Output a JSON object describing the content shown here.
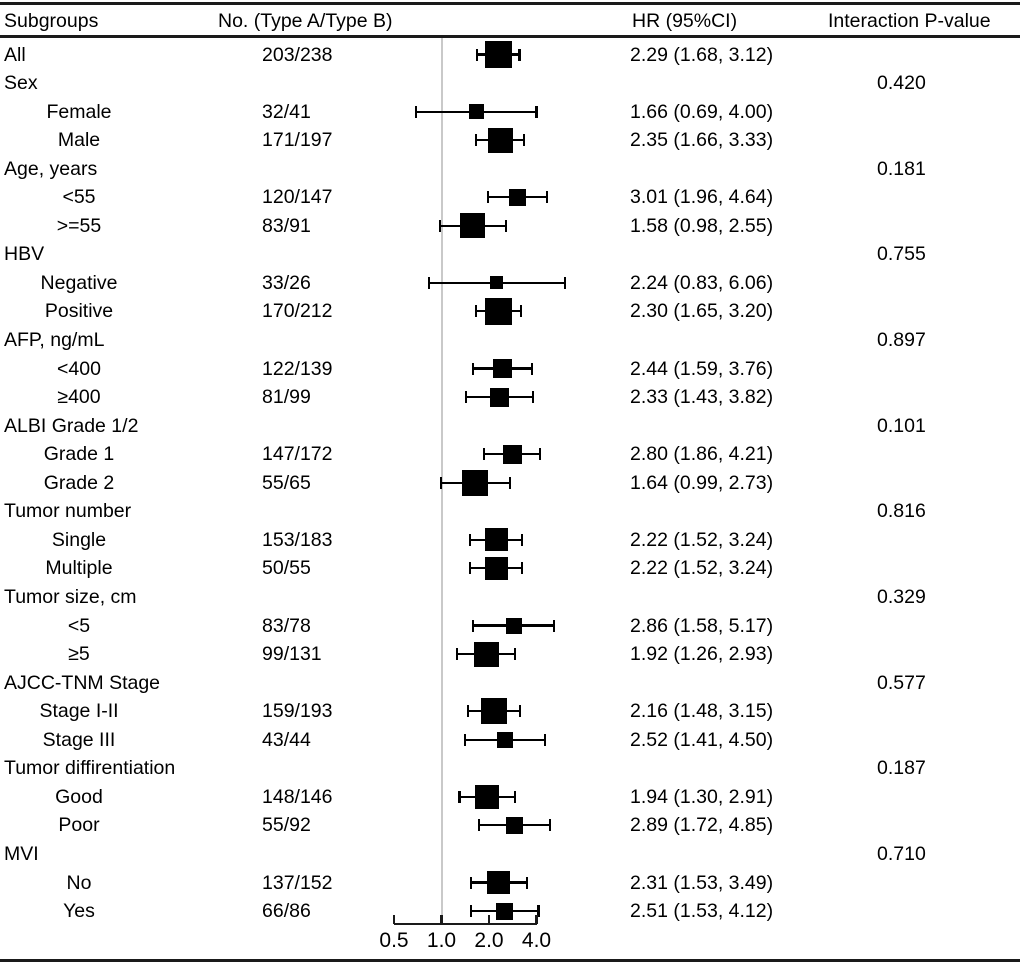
{
  "chart_data": {
    "type": "forest",
    "title": "",
    "columns": [
      "Subgroups",
      "No. (Type A/Type B)",
      "HR (95%CI)",
      "Interaction P-value"
    ],
    "axis": {
      "scale": "log2",
      "reference_value": 1.0,
      "ticks": [
        {
          "value": 0.5,
          "label": "0.5"
        },
        {
          "value": 1.0,
          "label": "1.0"
        },
        {
          "value": 2.0,
          "label": "2.0"
        },
        {
          "value": 4.0,
          "label": "4.0"
        }
      ]
    },
    "rows": [
      {
        "type": "overall",
        "label": "All",
        "n": "203/238",
        "hr": 2.29,
        "lo": 1.68,
        "hi": 3.12,
        "hr_text": "2.29 (1.68, 3.12)",
        "box": 27
      },
      {
        "type": "group",
        "label": "Sex",
        "p": "0.420"
      },
      {
        "type": "sub",
        "label": "Female",
        "n": "32/41",
        "hr": 1.66,
        "lo": 0.69,
        "hi": 4.0,
        "hr_text": "1.66 (0.69, 4.00)",
        "box": 15
      },
      {
        "type": "sub",
        "label": "Male",
        "n": "171/197",
        "hr": 2.35,
        "lo": 1.66,
        "hi": 3.33,
        "hr_text": "2.35 (1.66, 3.33)",
        "box": 25
      },
      {
        "type": "group",
        "label": "Age, years",
        "p": "0.181"
      },
      {
        "type": "sub",
        "label": "<55",
        "n": "120/147",
        "hr": 3.01,
        "lo": 1.96,
        "hi": 4.64,
        "hr_text": "3.01 (1.96, 4.64)",
        "box": 17
      },
      {
        "type": "sub",
        "label": ">=55",
        "n": "83/91",
        "hr": 1.58,
        "lo": 0.98,
        "hi": 2.55,
        "hr_text": "1.58 (0.98, 2.55)",
        "box": 25
      },
      {
        "type": "group",
        "label": "HBV",
        "p": "0.755"
      },
      {
        "type": "sub",
        "label": "Negative",
        "n": "33/26",
        "hr": 2.24,
        "lo": 0.83,
        "hi": 6.06,
        "hr_text": "2.24 (0.83, 6.06)",
        "box": 13
      },
      {
        "type": "sub",
        "label": "Positive",
        "n": "170/212",
        "hr": 2.3,
        "lo": 1.65,
        "hi": 3.2,
        "hr_text": "2.30 (1.65, 3.20)",
        "box": 27
      },
      {
        "type": "group",
        "label": "AFP, ng/mL",
        "p": "0.897"
      },
      {
        "type": "sub",
        "label": "<400",
        "n": "122/139",
        "hr": 2.44,
        "lo": 1.59,
        "hi": 3.76,
        "hr_text": "2.44 (1.59, 3.76)",
        "box": 19
      },
      {
        "type": "sub",
        "label": "≥400",
        "n": "81/99",
        "hr": 2.33,
        "lo": 1.43,
        "hi": 3.82,
        "hr_text": "2.33 (1.43, 3.82)",
        "box": 19
      },
      {
        "type": "group",
        "label": "ALBI Grade 1/2",
        "p": "0.101"
      },
      {
        "type": "sub",
        "label": "Grade 1",
        "n": "147/172",
        "hr": 2.8,
        "lo": 1.86,
        "hi": 4.21,
        "hr_text": "2.80 (1.86, 4.21)",
        "box": 19
      },
      {
        "type": "sub",
        "label": "Grade 2",
        "n": "55/65",
        "hr": 1.64,
        "lo": 0.99,
        "hi": 2.73,
        "hr_text": "1.64 (0.99, 2.73)",
        "box": 26
      },
      {
        "type": "group",
        "label": "Tumor number",
        "p": "0.816"
      },
      {
        "type": "sub",
        "label": "Single",
        "n": "153/183",
        "hr": 2.22,
        "lo": 1.52,
        "hi": 3.24,
        "hr_text": "2.22 (1.52, 3.24)",
        "box": 23
      },
      {
        "type": "sub",
        "label": "Multiple",
        "n": "50/55",
        "hr": 2.22,
        "lo": 1.52,
        "hi": 3.24,
        "hr_text": "2.22 (1.52, 3.24)",
        "box": 23
      },
      {
        "type": "group",
        "label": "Tumor size, cm",
        "p": "0.329"
      },
      {
        "type": "sub",
        "label": "<5",
        "n": "83/78",
        "hr": 2.86,
        "lo": 1.58,
        "hi": 5.17,
        "hr_text": "2.86 (1.58, 5.17)",
        "box": 16
      },
      {
        "type": "sub",
        "label": "≥5",
        "n": "99/131",
        "hr": 1.92,
        "lo": 1.26,
        "hi": 2.93,
        "hr_text": "1.92 (1.26, 2.93)",
        "box": 25
      },
      {
        "type": "group",
        "label": "AJCC-TNM Stage",
        "p": "0.577"
      },
      {
        "type": "sub",
        "label": "Stage I-II",
        "n": "159/193",
        "hr": 2.16,
        "lo": 1.48,
        "hi": 3.15,
        "hr_text": "2.16 (1.48, 3.15)",
        "box": 26
      },
      {
        "type": "sub",
        "label": "Stage III",
        "n": "43/44",
        "hr": 2.52,
        "lo": 1.41,
        "hi": 4.5,
        "hr_text": "2.52 (1.41, 4.50)",
        "box": 16
      },
      {
        "type": "group",
        "label": "Tumor diffirentiation",
        "p": "0.187"
      },
      {
        "type": "sub",
        "label": "Good",
        "n": "148/146",
        "hr": 1.94,
        "lo": 1.3,
        "hi": 2.91,
        "hr_text": "1.94 (1.30, 2.91)",
        "box": 24
      },
      {
        "type": "sub",
        "label": "Poor",
        "n": "55/92",
        "hr": 2.89,
        "lo": 1.72,
        "hi": 4.85,
        "hr_text": "2.89 (1.72, 4.85)",
        "box": 17
      },
      {
        "type": "group",
        "label": "MVI",
        "p": "0.710"
      },
      {
        "type": "sub",
        "label": "No",
        "n": "137/152",
        "hr": 2.31,
        "lo": 1.53,
        "hi": 3.49,
        "hr_text": "2.31 (1.53, 3.49)",
        "box": 23
      },
      {
        "type": "sub",
        "label": "Yes",
        "n": "66/86",
        "hr": 2.51,
        "lo": 1.53,
        "hi": 4.12,
        "hr_text": "2.51 (1.53, 4.12)",
        "box": 17
      }
    ],
    "colors": {
      "marker": "#000000",
      "reference_line": "#c9c9c9",
      "text": "#000000",
      "rule": "#1a1a1a"
    }
  }
}
